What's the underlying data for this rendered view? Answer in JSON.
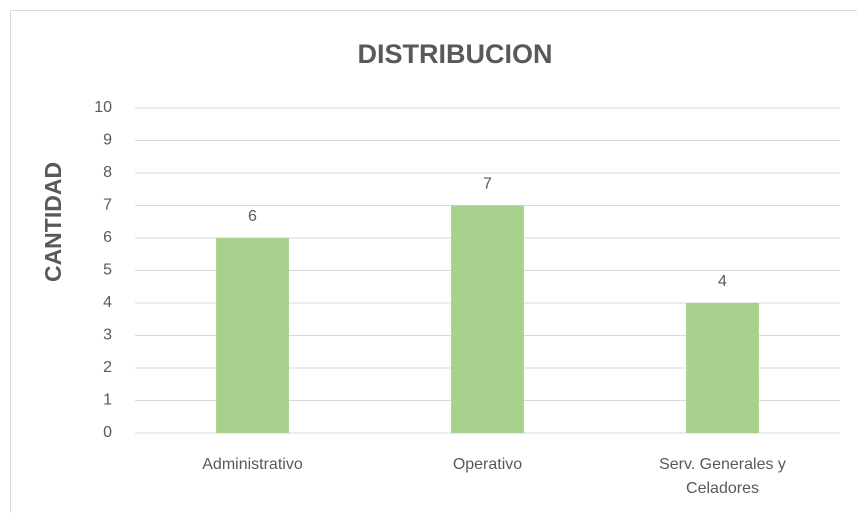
{
  "chart_data": {
    "type": "bar",
    "title": "DISTRIBUCION",
    "y_label": "CANTIDAD",
    "categories": [
      "Administrativo",
      "Operativo",
      "Serv. Generales y Celadores"
    ],
    "values": [
      6,
      7,
      4
    ],
    "color": "#a9d18e",
    "ylim": [
      0,
      10
    ],
    "yticks": [
      0,
      1,
      2,
      3,
      4,
      5,
      6,
      7,
      8,
      9,
      10
    ],
    "grid": true,
    "data_labels": true
  }
}
